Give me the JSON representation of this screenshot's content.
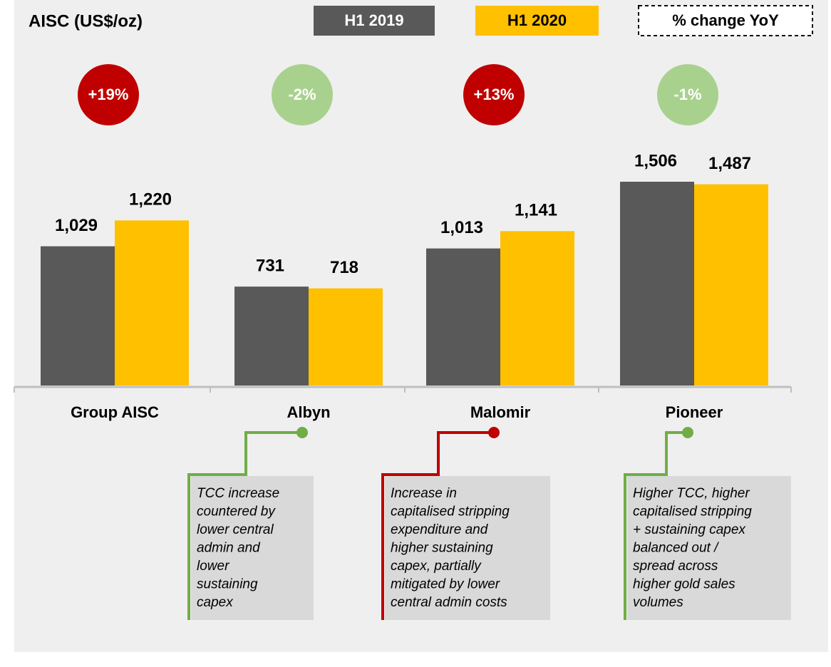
{
  "chart_data": {
    "type": "bar",
    "title": "AISC (US$/oz)",
    "categories": [
      "Group AISC",
      "Albyn",
      "Malomir",
      "Pioneer"
    ],
    "series": [
      {
        "name": "H1 2019",
        "color": "#595959",
        "values": [
          1029,
          731,
          1013,
          1506
        ],
        "value_labels": [
          "1,029",
          "731",
          "1,013",
          "1,506"
        ]
      },
      {
        "name": "H1 2020",
        "color": "#ffc000",
        "values": [
          1220,
          718,
          1141,
          1487
        ],
        "value_labels": [
          "1,220",
          "718",
          "1,141",
          "1,487"
        ]
      }
    ],
    "ylim": [
      0,
      1600
    ],
    "change_legend": "% change YoY",
    "changes": [
      {
        "label": "+19%",
        "color": "#c00000"
      },
      {
        "label": "-2%",
        "color": "#a9d18e"
      },
      {
        "label": "+13%",
        "color": "#c00000"
      },
      {
        "label": "-1%",
        "color": "#a9d18e"
      }
    ],
    "notes": [
      {
        "category": 1,
        "color": "#70ad47",
        "lines": [
          "TCC increase",
          "countered by",
          "lower central",
          "admin and",
          "lower",
          "sustaining",
          "capex"
        ]
      },
      {
        "category": 2,
        "color": "#c00000",
        "lines": [
          "Increase in",
          "capitalised stripping",
          "expenditure and",
          "higher sustaining",
          "capex, partially",
          "mitigated by lower",
          "central admin costs"
        ]
      },
      {
        "category": 3,
        "color": "#70ad47",
        "lines": [
          "Higher TCC, higher",
          "capitalised stripping",
          "+ sustaining capex",
          "balanced out /",
          "spread across",
          "higher gold sales",
          "volumes"
        ]
      }
    ]
  }
}
